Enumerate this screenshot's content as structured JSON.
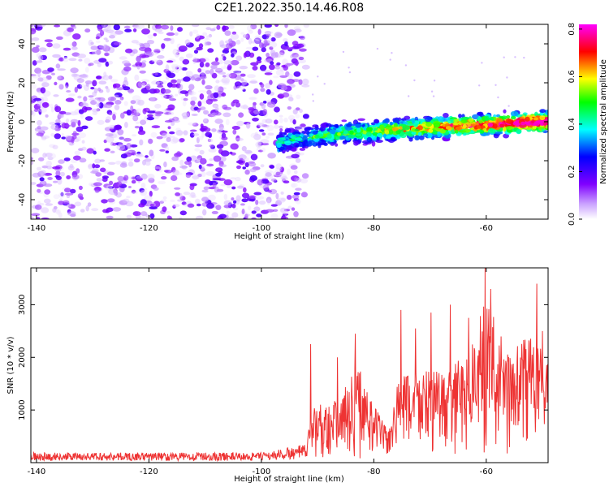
{
  "title": "C2E1.2022.350.14.46.R08",
  "chart_data": [
    {
      "type": "heatmap",
      "xlabel": "Height of straight line (km)",
      "ylabel": "Frequency (Hz)",
      "xlim": [
        -141,
        -49
      ],
      "ylim": [
        -50,
        50
      ],
      "xticks": [
        -140,
        -120,
        -100,
        -80,
        -60
      ],
      "yticks": [
        -40,
        -20,
        0,
        20,
        40
      ],
      "colorbar": {
        "label": "Normalized spectral amplitude",
        "range": [
          0,
          0.82
        ],
        "ticks": [
          "0.0",
          "0.2",
          "0.4",
          "0.6",
          "0.8"
        ],
        "colors": [
          "#ffffff",
          "#8000ff",
          "#0000ff",
          "#00ffff",
          "#00ff00",
          "#ffff00",
          "#ff0000",
          "#ff00ff"
        ]
      },
      "regions": [
        {
          "name": "noise",
          "x_range": [
            -141,
            -92
          ],
          "y_range": [
            -50,
            50
          ],
          "amplitude": [
            0.02,
            0.2
          ]
        },
        {
          "name": "echo",
          "x_range": [
            -97,
            -49
          ],
          "center_freq_start": -12,
          "center_freq_end": 0,
          "half_width": 4,
          "amplitude": [
            0.1,
            0.82
          ]
        }
      ]
    },
    {
      "type": "line",
      "xlabel": "Height of straight line (km)",
      "ylabel": "SNR (10 * v/v)",
      "xlim": [
        -141,
        -49
      ],
      "ylim": [
        0,
        3700
      ],
      "xticks": [
        -140,
        -120,
        -100,
        -80,
        -60
      ],
      "yticks": [
        1000,
        2000,
        3000
      ],
      "color": "#ee3333",
      "profile": [
        {
          "x": -141,
          "y": 120
        },
        {
          "x": -100,
          "y": 120
        },
        {
          "x": -92,
          "y": 220
        },
        {
          "x": -91,
          "y": 900
        },
        {
          "x": -86,
          "y": 1000
        },
        {
          "x": -83,
          "y": 1600
        },
        {
          "x": -80,
          "y": 900
        },
        {
          "x": -77,
          "y": 500
        },
        {
          "x": -76,
          "y": 1300
        },
        {
          "x": -72,
          "y": 1500
        },
        {
          "x": -67,
          "y": 1400
        },
        {
          "x": -63,
          "y": 1800
        },
        {
          "x": -60,
          "y": 2600
        },
        {
          "x": -56,
          "y": 1700
        },
        {
          "x": -52,
          "y": 2100
        },
        {
          "x": -49,
          "y": 1600
        }
      ],
      "peaks": [
        {
          "x": -91.2,
          "y": 2250
        },
        {
          "x": -86.5,
          "y": 2000
        },
        {
          "x": -83.3,
          "y": 2450
        },
        {
          "x": -75.2,
          "y": 2900
        },
        {
          "x": -72.6,
          "y": 2550
        },
        {
          "x": -69.8,
          "y": 2850
        },
        {
          "x": -66.4,
          "y": 3000
        },
        {
          "x": -63.1,
          "y": 2750
        },
        {
          "x": -60.2,
          "y": 3700
        },
        {
          "x": -59.2,
          "y": 3300
        },
        {
          "x": -51.0,
          "y": 3400
        },
        {
          "x": -50.0,
          "y": 2500
        }
      ]
    }
  ]
}
